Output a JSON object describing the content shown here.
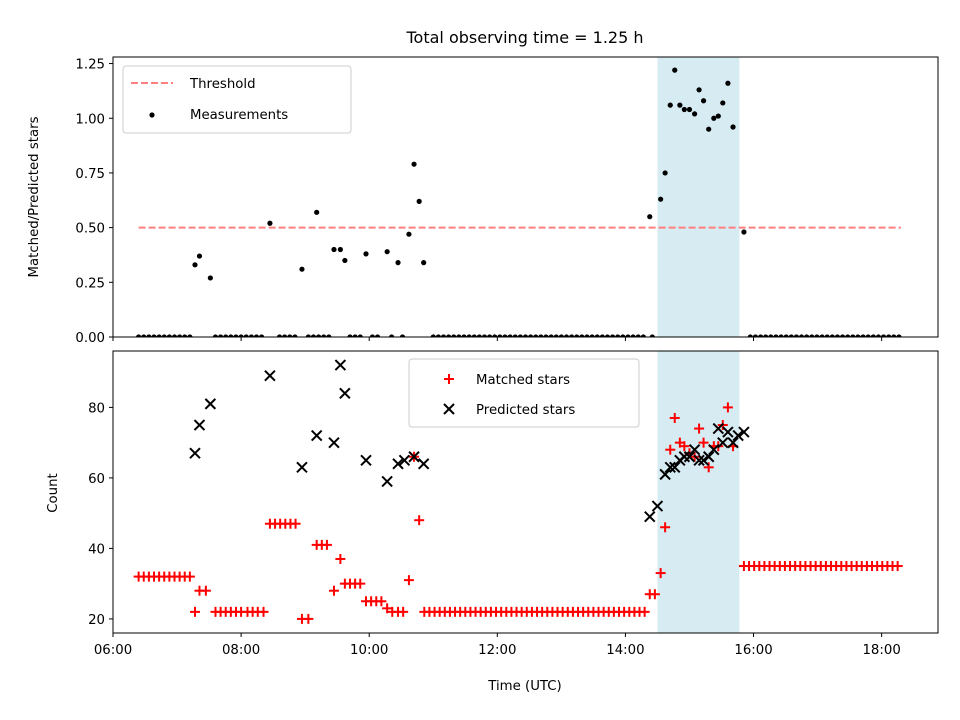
{
  "chart_data": {
    "title": "Total observing time = 1.25 h",
    "xlabel": "Time (UTC)",
    "x_unit": "hours UTC",
    "xlim": [
      6.0,
      18.88
    ],
    "x_ticks": [
      {
        "value": 6,
        "label": "06:00"
      },
      {
        "value": 8,
        "label": "08:00"
      },
      {
        "value": 10,
        "label": "10:00"
      },
      {
        "value": 12,
        "label": "12:00"
      },
      {
        "value": 14,
        "label": "14:00"
      },
      {
        "value": 16,
        "label": "16:00"
      },
      {
        "value": 18,
        "label": "18:00"
      }
    ],
    "shaded_interval": {
      "x_start": 14.5,
      "x_end": 15.78,
      "color": "#add8e6"
    },
    "panels": [
      {
        "type": "scatter",
        "ylabel": "Matched/Predicted stars",
        "ylim": [
          0.0,
          1.28
        ],
        "y_ticks": [
          {
            "value": 0.0,
            "label": "0.00"
          },
          {
            "value": 0.25,
            "label": "0.25"
          },
          {
            "value": 0.5,
            "label": "0.50"
          },
          {
            "value": 0.75,
            "label": "0.75"
          },
          {
            "value": 1.0,
            "label": "1.00"
          },
          {
            "value": 1.25,
            "label": "1.25"
          }
        ],
        "legend_position": "top-left",
        "threshold": {
          "name": "Threshold",
          "value": 0.5,
          "x_range": [
            6.4,
            18.3
          ],
          "color": "#ff7f7f"
        },
        "measurements": {
          "name": "Measurements",
          "color": "#000000",
          "points": [
            [
              7.28,
              0.33
            ],
            [
              7.35,
              0.37
            ],
            [
              7.52,
              0.27
            ],
            [
              8.45,
              0.52
            ],
            [
              8.95,
              0.31
            ],
            [
              9.18,
              0.57
            ],
            [
              9.45,
              0.4
            ],
            [
              9.55,
              0.4
            ],
            [
              9.62,
              0.35
            ],
            [
              9.95,
              0.38
            ],
            [
              10.28,
              0.39
            ],
            [
              10.45,
              0.34
            ],
            [
              10.62,
              0.47
            ],
            [
              10.7,
              0.79
            ],
            [
              10.78,
              0.62
            ],
            [
              10.85,
              0.34
            ],
            [
              14.38,
              0.55
            ],
            [
              14.55,
              0.63
            ],
            [
              14.62,
              0.75
            ],
            [
              14.7,
              1.06
            ],
            [
              14.77,
              1.22
            ],
            [
              14.85,
              1.06
            ],
            [
              14.92,
              1.04
            ],
            [
              15.0,
              1.04
            ],
            [
              15.08,
              1.02
            ],
            [
              15.15,
              1.13
            ],
            [
              15.22,
              1.08
            ],
            [
              15.3,
              0.95
            ],
            [
              15.38,
              1.0
            ],
            [
              15.45,
              1.01
            ],
            [
              15.52,
              1.07
            ],
            [
              15.6,
              1.16
            ],
            [
              15.68,
              0.96
            ],
            [
              15.85,
              0.48
            ]
          ],
          "zero_series": {
            "y": 0.0,
            "segments": [
              {
                "x_start": 6.4,
                "x_end": 7.2,
                "step": 0.08
              },
              {
                "x_start": 7.6,
                "x_end": 8.35,
                "step": 0.08
              },
              {
                "x_start": 8.6,
                "x_end": 8.85,
                "step": 0.08
              },
              {
                "x_start": 9.05,
                "x_end": 9.4,
                "step": 0.08
              },
              {
                "x_start": 9.7,
                "x_end": 9.9,
                "step": 0.08
              },
              {
                "x_start": 10.05,
                "x_end": 10.2,
                "step": 0.08
              },
              {
                "x_start": 10.35,
                "x_end": 10.4,
                "step": 0.08
              },
              {
                "x_start": 10.52,
                "x_end": 10.55,
                "step": 0.08
              },
              {
                "x_start": 11.0,
                "x_end": 14.3,
                "step": 0.08
              },
              {
                "x_start": 14.42,
                "x_end": 14.48,
                "step": 0.08
              },
              {
                "x_start": 15.95,
                "x_end": 18.3,
                "step": 0.08
              }
            ]
          }
        }
      },
      {
        "type": "scatter",
        "ylabel": "Count",
        "ylim": [
          16,
          96
        ],
        "y_ticks": [
          {
            "value": 20,
            "label": "20"
          },
          {
            "value": 40,
            "label": "40"
          },
          {
            "value": 60,
            "label": "60"
          },
          {
            "value": 80,
            "label": "80"
          }
        ],
        "legend_position": "upper center",
        "series": [
          {
            "name": "Matched stars",
            "marker": "+",
            "color": "#ff0000",
            "points": [
              [
                6.4,
                32
              ],
              [
                6.48,
                32
              ],
              [
                6.56,
                32
              ],
              [
                6.64,
                32
              ],
              [
                6.72,
                32
              ],
              [
                6.8,
                32
              ],
              [
                6.88,
                32
              ],
              [
                6.96,
                32
              ],
              [
                7.04,
                32
              ],
              [
                7.12,
                32
              ],
              [
                7.2,
                32
              ],
              [
                7.28,
                22
              ],
              [
                7.35,
                28
              ],
              [
                7.45,
                28
              ],
              [
                7.6,
                22
              ],
              [
                7.68,
                22
              ],
              [
                7.76,
                22
              ],
              [
                7.84,
                22
              ],
              [
                7.92,
                22
              ],
              [
                8.0,
                22
              ],
              [
                8.1,
                22
              ],
              [
                8.18,
                22
              ],
              [
                8.26,
                22
              ],
              [
                8.35,
                22
              ],
              [
                8.45,
                47
              ],
              [
                8.53,
                47
              ],
              [
                8.61,
                47
              ],
              [
                8.69,
                47
              ],
              [
                8.77,
                47
              ],
              [
                8.85,
                47
              ],
              [
                8.95,
                20
              ],
              [
                9.05,
                20
              ],
              [
                9.18,
                41
              ],
              [
                9.26,
                41
              ],
              [
                9.34,
                41
              ],
              [
                9.45,
                28
              ],
              [
                9.55,
                37
              ],
              [
                9.62,
                30
              ],
              [
                9.7,
                30
              ],
              [
                9.78,
                30
              ],
              [
                9.86,
                30
              ],
              [
                9.95,
                25
              ],
              [
                10.03,
                25
              ],
              [
                10.11,
                25
              ],
              [
                10.19,
                25
              ],
              [
                10.28,
                23
              ],
              [
                10.36,
                22
              ],
              [
                10.45,
                22
              ],
              [
                10.53,
                22
              ],
              [
                10.62,
                31
              ],
              [
                10.7,
                66
              ],
              [
                10.78,
                48
              ],
              [
                10.86,
                22
              ],
              [
                10.94,
                22
              ],
              [
                11.02,
                22
              ],
              [
                11.1,
                22
              ],
              [
                11.18,
                22
              ],
              [
                11.26,
                22
              ],
              [
                11.34,
                22
              ],
              [
                11.42,
                22
              ],
              [
                11.5,
                22
              ],
              [
                11.58,
                22
              ],
              [
                11.66,
                22
              ],
              [
                11.74,
                22
              ],
              [
                11.82,
                22
              ],
              [
                11.9,
                22
              ],
              [
                11.98,
                22
              ],
              [
                12.06,
                22
              ],
              [
                12.14,
                22
              ],
              [
                12.22,
                22
              ],
              [
                12.3,
                22
              ],
              [
                12.38,
                22
              ],
              [
                12.46,
                22
              ],
              [
                12.54,
                22
              ],
              [
                12.62,
                22
              ],
              [
                12.7,
                22
              ],
              [
                12.78,
                22
              ],
              [
                12.86,
                22
              ],
              [
                12.94,
                22
              ],
              [
                13.02,
                22
              ],
              [
                13.1,
                22
              ],
              [
                13.18,
                22
              ],
              [
                13.26,
                22
              ],
              [
                13.34,
                22
              ],
              [
                13.42,
                22
              ],
              [
                13.5,
                22
              ],
              [
                13.58,
                22
              ],
              [
                13.66,
                22
              ],
              [
                13.74,
                22
              ],
              [
                13.82,
                22
              ],
              [
                13.9,
                22
              ],
              [
                13.98,
                22
              ],
              [
                14.06,
                22
              ],
              [
                14.14,
                22
              ],
              [
                14.22,
                22
              ],
              [
                14.3,
                22
              ],
              [
                14.38,
                27
              ],
              [
                14.46,
                27
              ],
              [
                14.55,
                33
              ],
              [
                14.62,
                46
              ],
              [
                14.7,
                68
              ],
              [
                14.77,
                77
              ],
              [
                14.85,
                70
              ],
              [
                14.92,
                69
              ],
              [
                15.0,
                67
              ],
              [
                15.08,
                66
              ],
              [
                15.15,
                74
              ],
              [
                15.22,
                70
              ],
              [
                15.3,
                63
              ],
              [
                15.38,
                69
              ],
              [
                15.45,
                69
              ],
              [
                15.52,
                75
              ],
              [
                15.6,
                80
              ],
              [
                15.68,
                69
              ],
              [
                15.85,
                35
              ],
              [
                15.93,
                35
              ],
              [
                16.01,
                35
              ],
              [
                16.09,
                35
              ],
              [
                16.17,
                35
              ],
              [
                16.25,
                35
              ],
              [
                16.33,
                35
              ],
              [
                16.41,
                35
              ],
              [
                16.49,
                35
              ],
              [
                16.57,
                35
              ],
              [
                16.65,
                35
              ],
              [
                16.73,
                35
              ],
              [
                16.81,
                35
              ],
              [
                16.89,
                35
              ],
              [
                16.97,
                35
              ],
              [
                17.05,
                35
              ],
              [
                17.13,
                35
              ],
              [
                17.21,
                35
              ],
              [
                17.29,
                35
              ],
              [
                17.37,
                35
              ],
              [
                17.45,
                35
              ],
              [
                17.53,
                35
              ],
              [
                17.61,
                35
              ],
              [
                17.69,
                35
              ],
              [
                17.77,
                35
              ],
              [
                17.85,
                35
              ],
              [
                17.93,
                35
              ],
              [
                18.01,
                35
              ],
              [
                18.09,
                35
              ],
              [
                18.17,
                35
              ],
              [
                18.25,
                35
              ]
            ]
          },
          {
            "name": "Predicted stars",
            "marker": "x",
            "color": "#000000",
            "points": [
              [
                7.28,
                67
              ],
              [
                7.35,
                75
              ],
              [
                7.52,
                81
              ],
              [
                8.45,
                89
              ],
              [
                8.95,
                63
              ],
              [
                9.18,
                72
              ],
              [
                9.45,
                70
              ],
              [
                9.55,
                92
              ],
              [
                9.62,
                84
              ],
              [
                9.95,
                65
              ],
              [
                10.28,
                59
              ],
              [
                10.45,
                64
              ],
              [
                10.55,
                65
              ],
              [
                10.7,
                66
              ],
              [
                10.85,
                64
              ],
              [
                14.38,
                49
              ],
              [
                14.5,
                52
              ],
              [
                14.62,
                61
              ],
              [
                14.7,
                63
              ],
              [
                14.77,
                63
              ],
              [
                14.85,
                65
              ],
              [
                14.92,
                66
              ],
              [
                15.0,
                66
              ],
              [
                15.08,
                68
              ],
              [
                15.15,
                65
              ],
              [
                15.22,
                65
              ],
              [
                15.3,
                66
              ],
              [
                15.38,
                68
              ],
              [
                15.45,
                74
              ],
              [
                15.52,
                70
              ],
              [
                15.6,
                73
              ],
              [
                15.68,
                70
              ],
              [
                15.76,
                72
              ],
              [
                15.85,
                73
              ]
            ]
          }
        ]
      }
    ]
  }
}
